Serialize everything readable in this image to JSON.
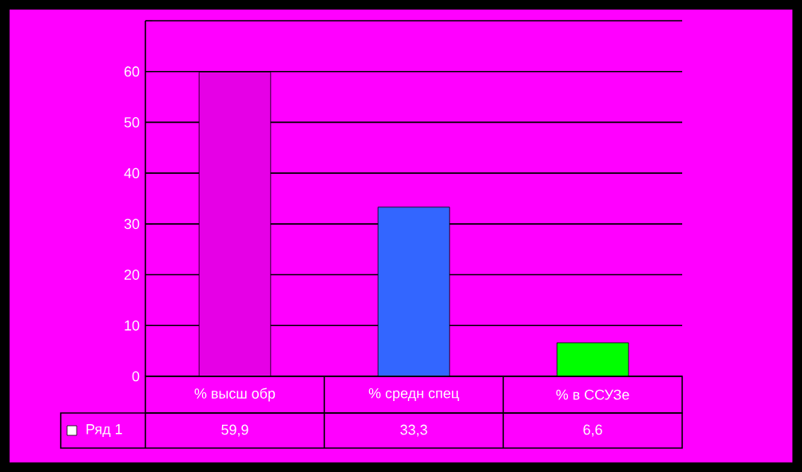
{
  "chart_data": {
    "type": "bar",
    "categories": [
      "% высш обр",
      "% средн спец",
      "% в ССУЗе"
    ],
    "series": [
      {
        "name": "Ряд 1",
        "values": [
          59.9,
          33.3,
          6.6
        ],
        "colors": [
          "#e600e6",
          "#3366ff",
          "#00ff00"
        ],
        "value_labels": [
          "59,9",
          "33,3",
          "6,6"
        ]
      }
    ],
    "ylim": [
      0,
      70
    ],
    "yticks": [
      0,
      10,
      20,
      30,
      40,
      50,
      60,
      {
        "value": 70,
        "label": null
      }
    ],
    "grid": "y",
    "legend": "bottom left"
  }
}
